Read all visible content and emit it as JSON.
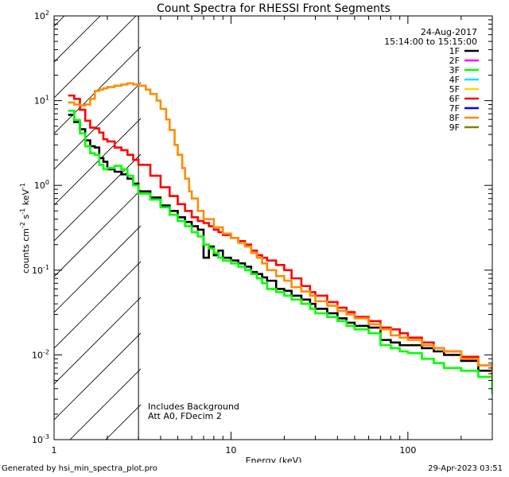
{
  "chart_data": {
    "type": "line",
    "title": "Count Spectra for RHESSI Front Segments",
    "xlabel": "Energy (keV)",
    "ylabel_parts": [
      "counts cm",
      "-2",
      " s",
      "-1",
      " keV",
      "-1"
    ],
    "xscale": "log",
    "yscale": "log",
    "xlim": [
      1,
      300
    ],
    "ylim": [
      0.001,
      100
    ],
    "x_tick_labels": [
      "1",
      "10",
      "100"
    ],
    "y_tick_mantissa": "10",
    "y_tick_exponents": [
      "-3",
      "-2",
      "-1",
      "0",
      "1",
      "2"
    ],
    "date": "24-Aug-2017",
    "time_range": "15:14:00 to 15:15:00",
    "shaded_region_end_kev": 3,
    "annotations": [
      "Includes Background",
      "Att A0, FDecim 2"
    ],
    "legend": [
      {
        "label": "1F",
        "color": "#000000"
      },
      {
        "label": "2F",
        "color": "#ff00ff"
      },
      {
        "label": "3F",
        "color": "#00ff00"
      },
      {
        "label": "4F",
        "color": "#00e5ff"
      },
      {
        "label": "5F",
        "color": "#ffd700"
      },
      {
        "label": "6F",
        "color": "#ff0000"
      },
      {
        "label": "7F",
        "color": "#0000ff"
      },
      {
        "label": "8F",
        "color": "#ff8c00"
      },
      {
        "label": "9F",
        "color": "#808000"
      }
    ],
    "series": [
      {
        "name": "1F",
        "color": "#000000",
        "points": [
          [
            1.2,
            6.8
          ],
          [
            1.3,
            5.6
          ],
          [
            1.4,
            4.6
          ],
          [
            1.5,
            3.4
          ],
          [
            1.6,
            2.9
          ],
          [
            1.7,
            2.8
          ],
          [
            1.8,
            2.1
          ],
          [
            1.9,
            1.9
          ],
          [
            2.0,
            1.55
          ],
          [
            2.2,
            1.45
          ],
          [
            2.4,
            1.35
          ],
          [
            2.6,
            1.2
          ],
          [
            2.8,
            1.05
          ],
          [
            3.0,
            0.85
          ],
          [
            3.5,
            0.72
          ],
          [
            4.0,
            0.58
          ],
          [
            4.5,
            0.5
          ],
          [
            5.0,
            0.42
          ],
          [
            5.5,
            0.37
          ],
          [
            6.0,
            0.33
          ],
          [
            6.5,
            0.3
          ],
          [
            7.0,
            0.14
          ],
          [
            7.5,
            0.19
          ],
          [
            8.0,
            0.15
          ],
          [
            8.5,
            0.17
          ],
          [
            9.0,
            0.14
          ],
          [
            10,
            0.13
          ],
          [
            11,
            0.12
          ],
          [
            12,
            0.11
          ],
          [
            13,
            0.095
          ],
          [
            14,
            0.09
          ],
          [
            15,
            0.082
          ],
          [
            16,
            0.075
          ],
          [
            18,
            0.06
          ],
          [
            20,
            0.057
          ],
          [
            22,
            0.05
          ],
          [
            25,
            0.045
          ],
          [
            28,
            0.04
          ],
          [
            30,
            0.035
          ],
          [
            35,
            0.031
          ],
          [
            40,
            0.027
          ],
          [
            45,
            0.024
          ],
          [
            50,
            0.022
          ],
          [
            60,
            0.021
          ],
          [
            70,
            0.015
          ],
          [
            80,
            0.014
          ],
          [
            90,
            0.013
          ],
          [
            100,
            0.013
          ],
          [
            120,
            0.012
          ],
          [
            140,
            0.011
          ],
          [
            160,
            0.01
          ],
          [
            200,
            0.0085
          ],
          [
            250,
            0.0065
          ],
          [
            300,
            0.0055
          ]
        ]
      },
      {
        "name": "3F",
        "color": "#00ff00",
        "points": [
          [
            1.2,
            7.6
          ],
          [
            1.3,
            5.9
          ],
          [
            1.4,
            4.1
          ],
          [
            1.5,
            2.9
          ],
          [
            1.6,
            2.4
          ],
          [
            1.7,
            2.3
          ],
          [
            1.8,
            1.75
          ],
          [
            1.9,
            1.55
          ],
          [
            2.0,
            1.6
          ],
          [
            2.2,
            1.7
          ],
          [
            2.4,
            1.55
          ],
          [
            2.6,
            1.3
          ],
          [
            2.8,
            1.0
          ],
          [
            3.0,
            0.8
          ],
          [
            3.5,
            0.68
          ],
          [
            4.0,
            0.55
          ],
          [
            4.5,
            0.45
          ],
          [
            5.0,
            0.38
          ],
          [
            5.5,
            0.33
          ],
          [
            6.0,
            0.28
          ],
          [
            6.5,
            0.25
          ],
          [
            7.0,
            0.2
          ],
          [
            7.5,
            0.18
          ],
          [
            8.0,
            0.16
          ],
          [
            8.5,
            0.14
          ],
          [
            9.0,
            0.13
          ],
          [
            10,
            0.12
          ],
          [
            11,
            0.11
          ],
          [
            12,
            0.1
          ],
          [
            13,
            0.09
          ],
          [
            14,
            0.08
          ],
          [
            15,
            0.07
          ],
          [
            16,
            0.06
          ],
          [
            18,
            0.055
          ],
          [
            20,
            0.05
          ],
          [
            22,
            0.045
          ],
          [
            25,
            0.04
          ],
          [
            28,
            0.035
          ],
          [
            30,
            0.031
          ],
          [
            35,
            0.028
          ],
          [
            40,
            0.025
          ],
          [
            45,
            0.022
          ],
          [
            50,
            0.02
          ],
          [
            60,
            0.018
          ],
          [
            70,
            0.013
          ],
          [
            80,
            0.012
          ],
          [
            90,
            0.011
          ],
          [
            100,
            0.0105
          ],
          [
            120,
            0.009
          ],
          [
            140,
            0.008
          ],
          [
            160,
            0.007
          ],
          [
            200,
            0.0065
          ],
          [
            250,
            0.0055
          ],
          [
            300,
            0.0035
          ]
        ]
      },
      {
        "name": "6F",
        "color": "#ff0000",
        "points": [
          [
            1.2,
            11.5
          ],
          [
            1.3,
            10.5
          ],
          [
            1.4,
            7.8
          ],
          [
            1.5,
            5.8
          ],
          [
            1.6,
            4.8
          ],
          [
            1.7,
            4.7
          ],
          [
            1.8,
            4.2
          ],
          [
            1.9,
            3.5
          ],
          [
            2.0,
            3.3
          ],
          [
            2.2,
            2.8
          ],
          [
            2.4,
            2.6
          ],
          [
            2.6,
            2.3
          ],
          [
            2.8,
            2.0
          ],
          [
            3.0,
            1.75
          ],
          [
            3.5,
            1.3
          ],
          [
            4.0,
            0.95
          ],
          [
            4.5,
            0.75
          ],
          [
            5.0,
            0.6
          ],
          [
            5.5,
            0.5
          ],
          [
            6.0,
            0.42
          ],
          [
            6.5,
            0.38
          ],
          [
            7.0,
            0.36
          ],
          [
            7.5,
            0.33
          ],
          [
            8.0,
            0.3
          ],
          [
            8.5,
            0.28
          ],
          [
            9.0,
            0.26
          ],
          [
            10,
            0.24
          ],
          [
            11,
            0.22
          ],
          [
            12,
            0.2
          ],
          [
            13,
            0.17
          ],
          [
            14,
            0.15
          ],
          [
            15,
            0.14
          ],
          [
            16,
            0.13
          ],
          [
            18,
            0.115
          ],
          [
            20,
            0.1
          ],
          [
            22,
            0.08
          ],
          [
            25,
            0.065
          ],
          [
            28,
            0.055
          ],
          [
            30,
            0.05
          ],
          [
            35,
            0.042
          ],
          [
            40,
            0.036
          ],
          [
            45,
            0.032
          ],
          [
            50,
            0.028
          ],
          [
            60,
            0.025
          ],
          [
            70,
            0.021
          ],
          [
            80,
            0.02
          ],
          [
            90,
            0.018
          ],
          [
            100,
            0.016
          ],
          [
            120,
            0.014
          ],
          [
            140,
            0.012
          ],
          [
            160,
            0.011
          ],
          [
            200,
            0.0095
          ],
          [
            250,
            0.0075
          ],
          [
            300,
            0.006
          ]
        ]
      },
      {
        "name": "8F",
        "color": "#ff8c00",
        "points": [
          [
            1.2,
            9.5
          ],
          [
            1.3,
            9.0
          ],
          [
            1.4,
            8.8
          ],
          [
            1.5,
            9.0
          ],
          [
            1.6,
            10.5
          ],
          [
            1.7,
            13.0
          ],
          [
            1.8,
            13.5
          ],
          [
            1.9,
            14.0
          ],
          [
            2.0,
            14.5
          ],
          [
            2.2,
            15.0
          ],
          [
            2.4,
            15.5
          ],
          [
            2.6,
            16.0
          ],
          [
            2.8,
            15.5
          ],
          [
            3.0,
            15.0
          ],
          [
            3.3,
            13.5
          ],
          [
            3.5,
            12.0
          ],
          [
            3.8,
            10.0
          ],
          [
            4.0,
            8.0
          ],
          [
            4.3,
            6.0
          ],
          [
            4.5,
            4.5
          ],
          [
            4.8,
            3.0
          ],
          [
            5.0,
            2.3
          ],
          [
            5.3,
            1.6
          ],
          [
            5.5,
            1.2
          ],
          [
            5.8,
            0.85
          ],
          [
            6.0,
            0.7
          ],
          [
            6.5,
            0.5
          ],
          [
            7.0,
            0.4
          ],
          [
            8.0,
            0.32
          ],
          [
            9.0,
            0.27
          ],
          [
            10,
            0.24
          ],
          [
            11,
            0.21
          ],
          [
            12,
            0.19
          ],
          [
            13,
            0.16
          ],
          [
            14,
            0.14
          ],
          [
            15,
            0.12
          ],
          [
            16,
            0.1
          ],
          [
            18,
            0.085
          ],
          [
            20,
            0.075
          ],
          [
            22,
            0.063
          ],
          [
            25,
            0.056
          ],
          [
            28,
            0.05
          ],
          [
            30,
            0.043
          ],
          [
            35,
            0.038
          ],
          [
            40,
            0.033
          ],
          [
            45,
            0.03
          ],
          [
            50,
            0.027
          ],
          [
            60,
            0.023
          ],
          [
            70,
            0.02
          ],
          [
            80,
            0.017
          ],
          [
            90,
            0.016
          ],
          [
            100,
            0.015
          ],
          [
            120,
            0.013
          ],
          [
            140,
            0.012
          ],
          [
            160,
            0.011
          ],
          [
            200,
            0.009
          ],
          [
            250,
            0.0075
          ],
          [
            300,
            0.0055
          ]
        ]
      }
    ]
  },
  "footer": {
    "generated_by": "Generated by hsi_min_spectra_plot.pro",
    "timestamp": "29-Apr-2023 03:51"
  }
}
